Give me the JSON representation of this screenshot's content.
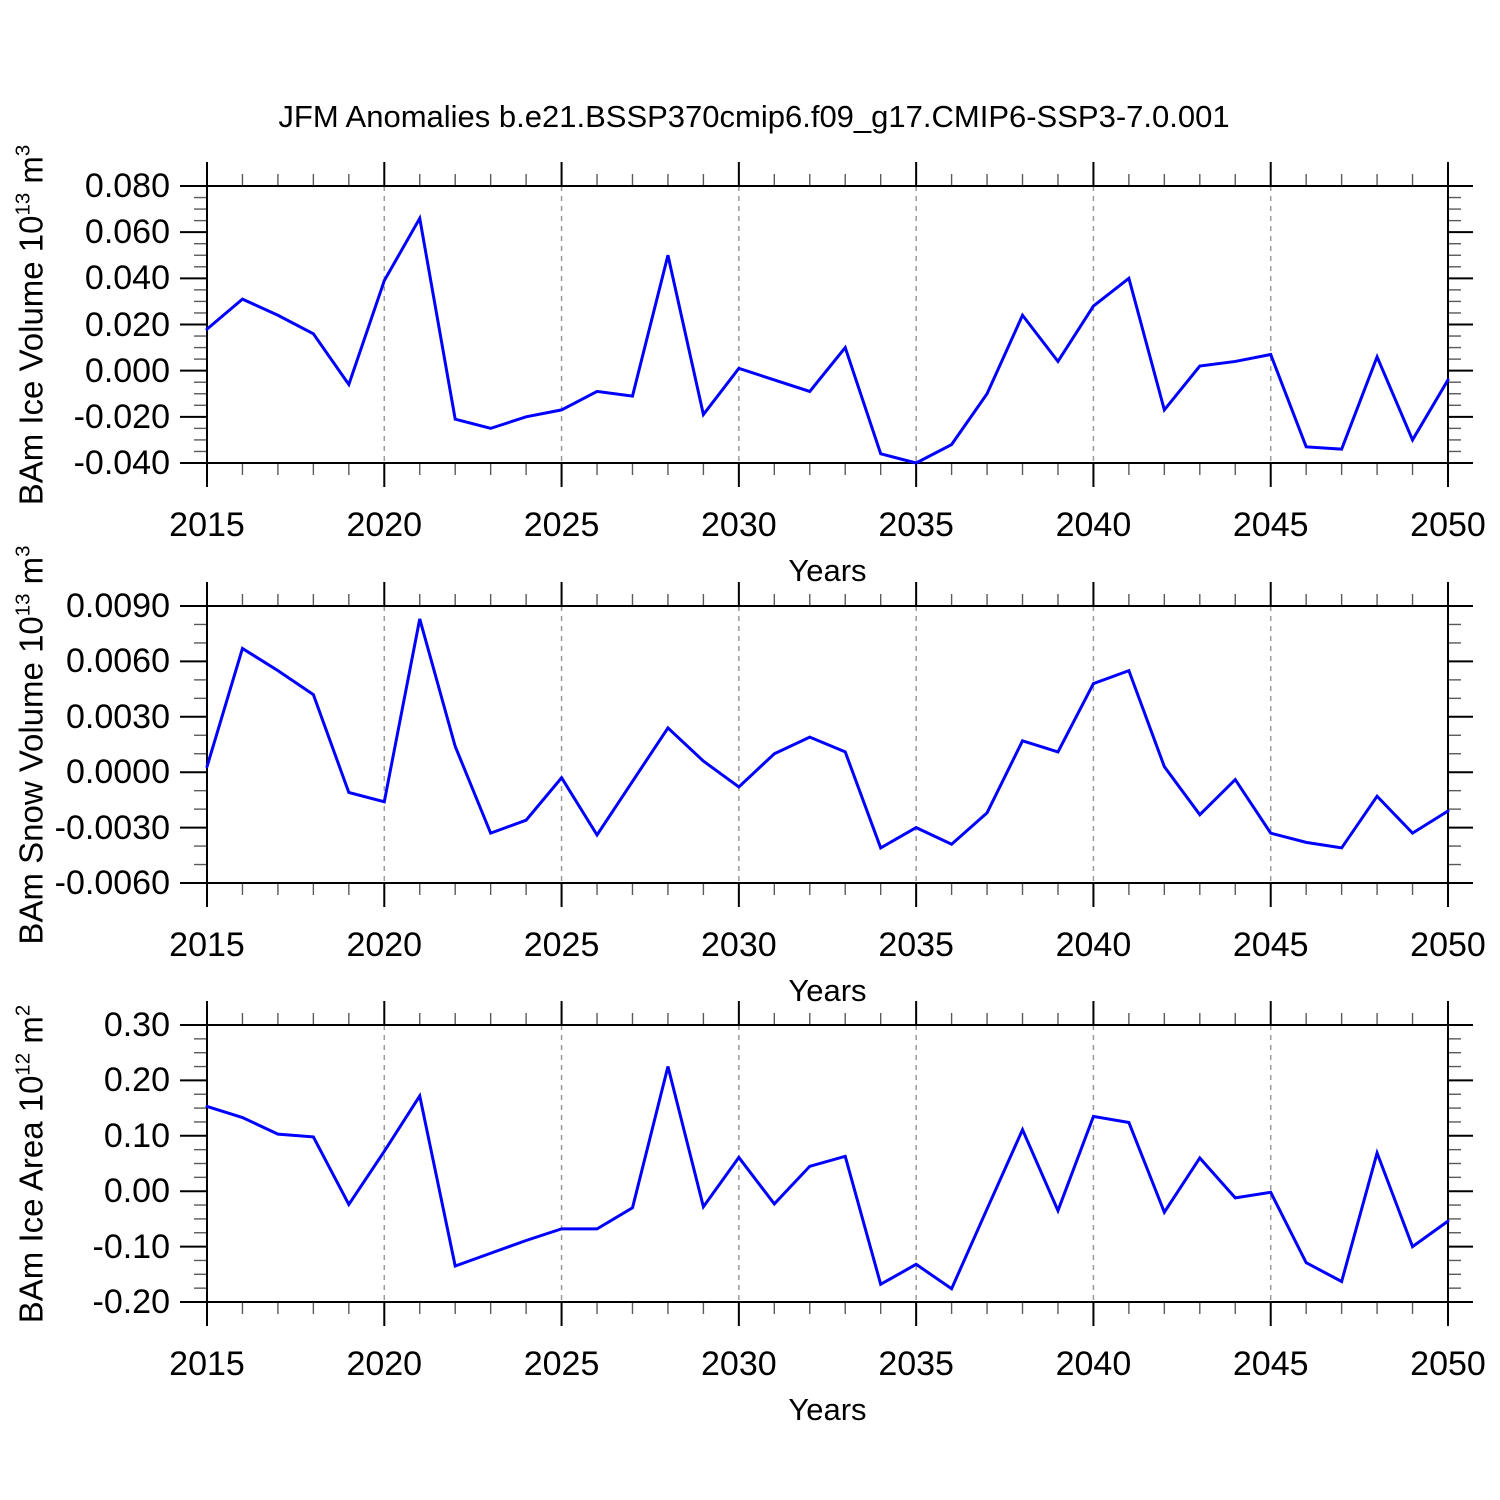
{
  "title": "JFM Anomalies b.e21.BSSP370cmip6.f09_g17.CMIP6-SSP3-7.0.001",
  "colors": {
    "line": "#0000ff",
    "grid": "#9a9a9a",
    "frame": "#000000",
    "text": "#000000",
    "background": "#ffffff"
  },
  "chart_data": [
    {
      "type": "line",
      "ylabel": "BAm Ice Volume 10^13 m^3",
      "ylabel_segments": [
        {
          "text": "BAm Ice Volume 10",
          "sup": false
        },
        {
          "text": "13",
          "sup": true
        },
        {
          "text": " m",
          "sup": false
        },
        {
          "text": "3",
          "sup": true
        }
      ],
      "xlabel": "Years",
      "x_range": [
        2015,
        2050
      ],
      "ylim": [
        -0.04,
        0.08
      ],
      "yticks": [
        0.08,
        0.06,
        0.04,
        0.02,
        0.0,
        -0.02,
        -0.04
      ],
      "ytick_labels": [
        "0.080",
        "0.060",
        "0.040",
        "0.020",
        "0.000",
        "-0.020",
        "-0.040"
      ],
      "yminor_step": 0.005,
      "xtick_years": [
        2015,
        2020,
        2025,
        2030,
        2035,
        2040,
        2045,
        2050
      ],
      "xtick_labels": [
        "2015",
        "2020",
        "2025",
        "2030",
        "2035",
        "2040",
        "2045",
        "2050"
      ],
      "grid_years": [
        2020,
        2025,
        2030,
        2035,
        2040,
        2045
      ],
      "grid_on": true,
      "legend": "none",
      "line_color": "#0000ff",
      "years": [
        2015,
        2016,
        2017,
        2018,
        2019,
        2020,
        2021,
        2022,
        2023,
        2024,
        2025,
        2026,
        2027,
        2028,
        2029,
        2030,
        2031,
        2032,
        2033,
        2034,
        2035,
        2036,
        2037,
        2038,
        2039,
        2040,
        2041,
        2042,
        2043,
        2044,
        2045,
        2046,
        2047,
        2048,
        2049,
        2050
      ],
      "values": [
        0.018,
        0.031,
        0.024,
        0.016,
        -0.006,
        0.039,
        0.066,
        -0.021,
        -0.025,
        -0.02,
        -0.017,
        -0.009,
        -0.011,
        0.05,
        -0.019,
        0.001,
        -0.004,
        -0.009,
        0.01,
        -0.036,
        -0.04,
        -0.032,
        -0.01,
        0.024,
        0.004,
        0.028,
        0.04,
        -0.017,
        0.002,
        0.004,
        0.007,
        -0.033,
        -0.034,
        0.006,
        -0.03,
        -0.004
      ]
    },
    {
      "type": "line",
      "ylabel": "BAm Snow Volume 10^13 m^3",
      "ylabel_segments": [
        {
          "text": "BAm Snow Volume 10",
          "sup": false
        },
        {
          "text": "13",
          "sup": true
        },
        {
          "text": " m",
          "sup": false
        },
        {
          "text": "3",
          "sup": true
        }
      ],
      "xlabel": "Years",
      "x_range": [
        2015,
        2050
      ],
      "ylim": [
        -0.006,
        0.009
      ],
      "yticks": [
        0.009,
        0.006,
        0.003,
        0.0,
        -0.003,
        -0.006
      ],
      "ytick_labels": [
        "0.0090",
        "0.0060",
        "0.0030",
        "0.0000",
        "-0.0030",
        "-0.0060"
      ],
      "yminor_step": 0.001,
      "xtick_years": [
        2015,
        2020,
        2025,
        2030,
        2035,
        2040,
        2045,
        2050
      ],
      "xtick_labels": [
        "2015",
        "2020",
        "2025",
        "2030",
        "2035",
        "2040",
        "2045",
        "2050"
      ],
      "grid_years": [
        2020,
        2025,
        2030,
        2035,
        2040,
        2045
      ],
      "grid_on": true,
      "legend": "none",
      "line_color": "#0000ff",
      "years": [
        2015,
        2016,
        2017,
        2018,
        2019,
        2020,
        2021,
        2022,
        2023,
        2024,
        2025,
        2026,
        2027,
        2028,
        2029,
        2030,
        2031,
        2032,
        2033,
        2034,
        2035,
        2036,
        2037,
        2038,
        2039,
        2040,
        2041,
        2042,
        2043,
        2044,
        2045,
        2046,
        2047,
        2048,
        2049,
        2050
      ],
      "values": [
        0.0003,
        0.0067,
        0.0055,
        0.0042,
        -0.0011,
        -0.0016,
        0.0083,
        0.0014,
        -0.0033,
        -0.0026,
        -0.0003,
        -0.0034,
        -0.0005,
        0.0024,
        0.0006,
        -0.0008,
        0.001,
        0.0019,
        0.0011,
        -0.0041,
        -0.003,
        -0.0039,
        -0.0022,
        0.0017,
        0.0011,
        0.0048,
        0.0055,
        0.0003,
        -0.0023,
        -0.0004,
        -0.0033,
        -0.0038,
        -0.0041,
        -0.0013,
        -0.0033,
        -0.0021
      ]
    },
    {
      "type": "line",
      "ylabel": "BAm Ice Area 10^12 m^2",
      "ylabel_segments": [
        {
          "text": "BAm Ice Area 10",
          "sup": false
        },
        {
          "text": "12",
          "sup": true
        },
        {
          "text": " m",
          "sup": false
        },
        {
          "text": "2",
          "sup": true
        }
      ],
      "xlabel": "Years",
      "x_range": [
        2015,
        2050
      ],
      "ylim": [
        -0.2,
        0.3
      ],
      "yticks": [
        0.3,
        0.2,
        0.1,
        0.0,
        -0.1,
        -0.2
      ],
      "ytick_labels": [
        "0.30",
        "0.20",
        "0.10",
        "0.00",
        "-0.10",
        "-0.20"
      ],
      "yminor_step": 0.025,
      "xtick_years": [
        2015,
        2020,
        2025,
        2030,
        2035,
        2040,
        2045,
        2050
      ],
      "xtick_labels": [
        "2015",
        "2020",
        "2025",
        "2030",
        "2035",
        "2040",
        "2045",
        "2050"
      ],
      "grid_years": [
        2020,
        2025,
        2030,
        2035,
        2040,
        2045
      ],
      "grid_on": true,
      "legend": "none",
      "line_color": "#0000ff",
      "years": [
        2015,
        2016,
        2017,
        2018,
        2019,
        2020,
        2021,
        2022,
        2023,
        2024,
        2025,
        2026,
        2027,
        2028,
        2029,
        2030,
        2031,
        2032,
        2033,
        2034,
        2035,
        2036,
        2037,
        2038,
        2039,
        2040,
        2041,
        2042,
        2043,
        2044,
        2045,
        2046,
        2047,
        2048,
        2049,
        2050
      ],
      "values": [
        0.153,
        0.133,
        0.103,
        0.098,
        -0.024,
        0.072,
        0.172,
        -0.135,
        -0.112,
        -0.089,
        -0.068,
        -0.068,
        -0.03,
        0.225,
        -0.028,
        0.061,
        -0.023,
        0.045,
        0.063,
        -0.168,
        -0.132,
        -0.176,
        -0.032,
        0.111,
        -0.035,
        0.135,
        0.124,
        -0.038,
        0.06,
        -0.012,
        -0.002,
        -0.129,
        -0.163,
        0.069,
        -0.1,
        -0.054
      ]
    }
  ]
}
